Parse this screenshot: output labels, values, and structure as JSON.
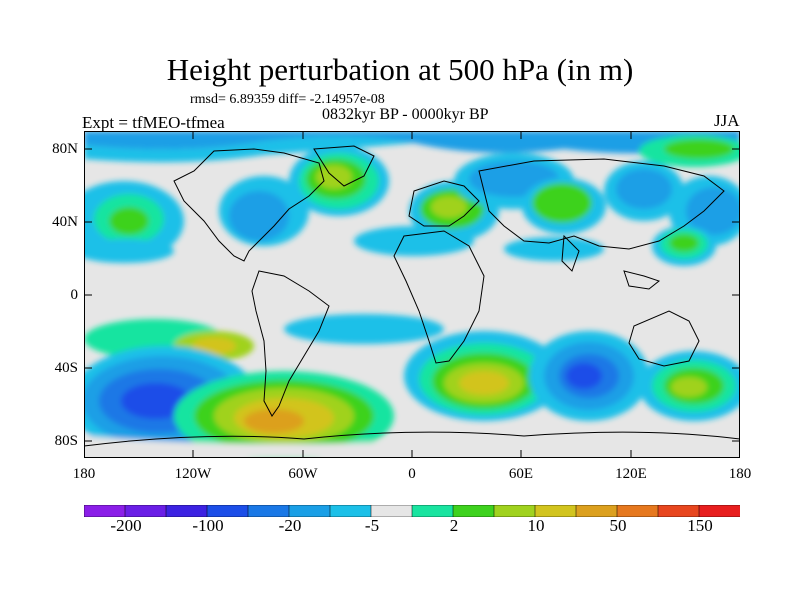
{
  "title": "Height perturbation at 500 hPa (in m)",
  "stats": "rmsd= 6.89359 diff= -2.14957e-08",
  "expt": "Expt = tfMEO-tfmea",
  "period": "0832kyr BP - 0000kyr BP",
  "season": "JJA",
  "lat_labels": [
    "80N",
    "40N",
    "0",
    "40S",
    "80S"
  ],
  "lon_labels": [
    "180",
    "120W",
    "60W",
    "0",
    "60E",
    "120E",
    "180"
  ],
  "colorbar": {
    "colors": [
      "#8b1ee8",
      "#6a1ee6",
      "#3c22e2",
      "#1c4ee8",
      "#1a78e6",
      "#1a9fe6",
      "#1cc0e8",
      "#e6e6e6",
      "#19e4a0",
      "#3ed21e",
      "#a0d21e",
      "#d2c41e",
      "#dca01e",
      "#e6781e",
      "#e8461e",
      "#e81e1e"
    ],
    "labels": [
      "-200",
      "-100",
      "-20",
      "-5",
      "2",
      "10",
      "50",
      "150"
    ]
  }
}
